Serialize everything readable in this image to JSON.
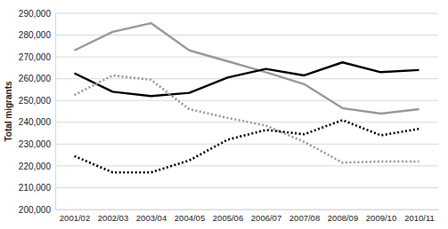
{
  "chart_data": {
    "type": "line",
    "y_label": "Total migrants",
    "categories": [
      "2001/02",
      "2002/03",
      "2003/04",
      "2004/05",
      "2005/06",
      "2006/07",
      "2007/08",
      "2008/09",
      "2009/10",
      "2010/11"
    ],
    "series": [
      {
        "color": "#999999",
        "line_style": "solid",
        "values": [
          273000,
          281500,
          285500,
          273000,
          268000,
          263000,
          257500,
          246500,
          244000,
          246000
        ]
      },
      {
        "color": "#000000",
        "line_style": "solid",
        "values": [
          262500,
          254000,
          252000,
          253500,
          260500,
          264500,
          261500,
          267500,
          263000,
          264000
        ]
      },
      {
        "color": "#999999",
        "line_style": "dotted",
        "values": [
          252500,
          261500,
          259500,
          246000,
          242000,
          238500,
          231000,
          221500,
          222000,
          222000
        ]
      },
      {
        "color": "#000000",
        "line_style": "dotted",
        "values": [
          224500,
          217000,
          217000,
          222500,
          232000,
          236500,
          234500,
          241000,
          234000,
          237000
        ]
      }
    ],
    "ylim": [
      200000,
      290000
    ],
    "yticks": [
      {
        "value": 200000,
        "label": "200,000"
      },
      {
        "value": 210000,
        "label": "210,000"
      },
      {
        "value": 220000,
        "label": "220,000"
      },
      {
        "value": 230000,
        "label": "230,000"
      },
      {
        "value": 240000,
        "label": "240,000"
      },
      {
        "value": 250000,
        "label": "250,000"
      },
      {
        "value": 260000,
        "label": "260,000"
      },
      {
        "value": 270000,
        "label": "270,000"
      },
      {
        "value": 280000,
        "label": "280,000"
      },
      {
        "value": 290000,
        "label": "290,000"
      }
    ],
    "grid": true
  }
}
